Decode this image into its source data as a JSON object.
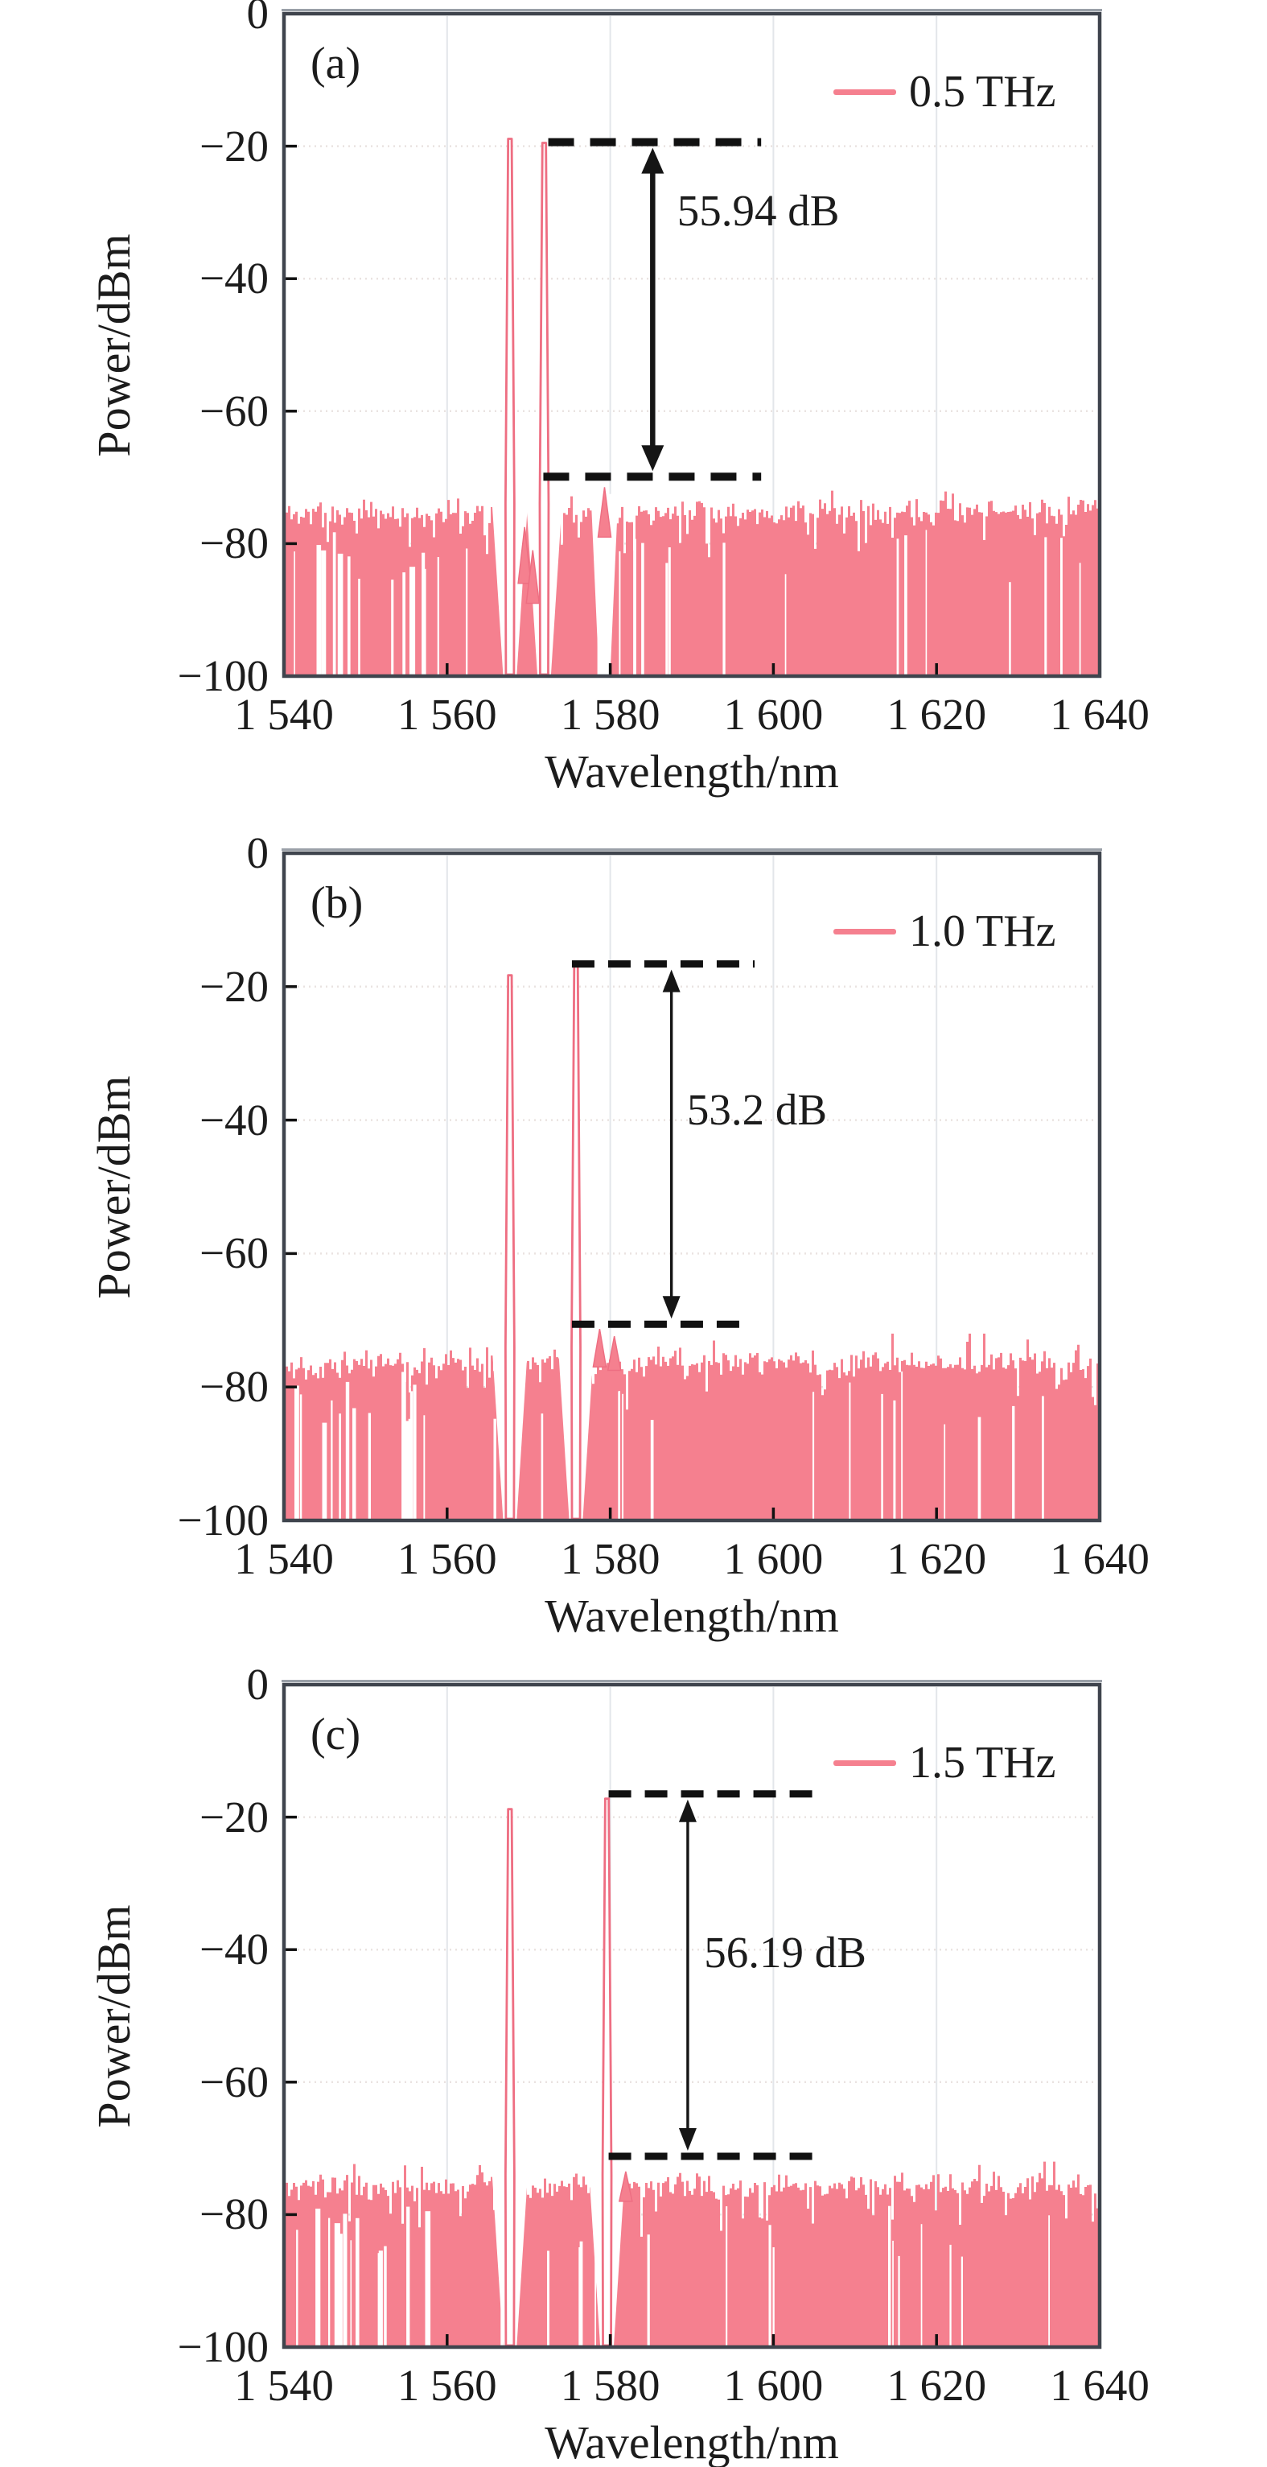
{
  "figure": {
    "background": "#ffffff",
    "trace_color": "#f5808f",
    "trace_edge_color": "#ee6e82",
    "frame_color": "#3f444d",
    "frame_highlight_color": "#9aa0a8",
    "grid_vertical_color": "#e3e6ea",
    "grid_horizontal_color": "#eae3e1",
    "dash_color": "#111111",
    "arrow_color": "#151515",
    "text_color": "#1c1c1c"
  },
  "chart_data": [
    {
      "type": "area",
      "panel_label": "(a)",
      "legend": {
        "label": "0.5 THz",
        "position": "top-right"
      },
      "xlabel": "Wavelength/nm",
      "ylabel": "Power/dBm",
      "xlim": [
        1540,
        1640
      ],
      "ylim": [
        -100,
        0
      ],
      "x_ticks": [
        1540,
        1560,
        1580,
        1600,
        1620,
        1640
      ],
      "x_tick_labels": [
        "1 540",
        "1 560",
        "1 580",
        "1 600",
        "1 620",
        "1 640"
      ],
      "y_ticks": [
        0,
        -20,
        -40,
        -60,
        -80,
        -100
      ],
      "y_tick_labels": [
        "0",
        "−20",
        "−40",
        "−60",
        "−80",
        "−100"
      ],
      "grid": true,
      "peaks": [
        {
          "name": "pump",
          "wavelength_nm": 1567.7,
          "power_dbm": -18.9
        },
        {
          "name": "signal",
          "wavelength_nm": 1571.9,
          "power_dbm": -19.5
        }
      ],
      "small_peaks": [
        {
          "wavelength_nm": 1569.5,
          "power_dbm": -77.5,
          "base_dbm": -86,
          "column": false
        },
        {
          "wavelength_nm": 1570.5,
          "power_dbm": -81.0,
          "base_dbm": -89,
          "column": false
        },
        {
          "wavelength_nm": 1579.3,
          "power_dbm": -71.5,
          "base_dbm": -79,
          "column": true
        }
      ],
      "noise_floor_dbm": -75.4,
      "noise_jitter_db": 2.4,
      "noise_seed": 11,
      "osnr_annotation": {
        "text": "55.94 dB",
        "value_db": 55.94,
        "arrow_x_nm": 1585.2,
        "arrow_style": "thick",
        "top_line_dbm": -19.4,
        "top_line_range_nm": [
          1572.4,
          1598.5
        ],
        "bottom_line_dbm": -69.9,
        "bottom_line_range_nm": [
          1571.8,
          1598.5
        ],
        "text_anchor_nm": 1588.2,
        "text_center_dbm": -29.8
      }
    },
    {
      "type": "area",
      "panel_label": "(b)",
      "legend": {
        "label": "1.0 THz",
        "position": "top-right"
      },
      "xlabel": "Wavelength/nm",
      "ylabel": "Power/dBm",
      "xlim": [
        1540,
        1640
      ],
      "ylim": [
        -100,
        0
      ],
      "x_ticks": [
        1540,
        1560,
        1580,
        1600,
        1620,
        1640
      ],
      "x_tick_labels": [
        "1 540",
        "1 560",
        "1 580",
        "1 600",
        "1 620",
        "1 640"
      ],
      "y_ticks": [
        0,
        -20,
        -40,
        -60,
        -80,
        -100
      ],
      "y_tick_labels": [
        "0",
        "−20",
        "−40",
        "−60",
        "−80",
        "−100"
      ],
      "grid": true,
      "peaks": [
        {
          "name": "pump",
          "wavelength_nm": 1567.7,
          "power_dbm": -18.3
        },
        {
          "name": "signal",
          "wavelength_nm": 1575.8,
          "power_dbm": -16.7
        }
      ],
      "small_peaks": [
        {
          "wavelength_nm": 1578.7,
          "power_dbm": -71.3,
          "base_dbm": -77,
          "column": false
        },
        {
          "wavelength_nm": 1580.5,
          "power_dbm": -72.4,
          "base_dbm": -77.5,
          "column": false
        }
      ],
      "noise_floor_dbm": -76.6,
      "noise_jitter_db": 2.4,
      "noise_seed": 22,
      "osnr_annotation": {
        "text": "53.2 dB",
        "value_db": 53.2,
        "arrow_x_nm": 1587.5,
        "arrow_style": "thin",
        "top_line_dbm": -16.6,
        "top_line_range_nm": [
          1575.3,
          1597.7
        ],
        "bottom_line_dbm": -70.6,
        "bottom_line_range_nm": [
          1575.3,
          1596.5
        ],
        "text_anchor_nm": 1589.4,
        "text_center_dbm": -38.5
      }
    },
    {
      "type": "area",
      "panel_label": "(c)",
      "legend": {
        "label": "1.5 THz",
        "position": "top-right"
      },
      "xlabel": "Wavelength/nm",
      "ylabel": "Power/dBm",
      "xlim": [
        1540,
        1640
      ],
      "ylim": [
        -100,
        0
      ],
      "x_ticks": [
        1540,
        1560,
        1580,
        1600,
        1620,
        1640
      ],
      "x_tick_labels": [
        "1 540",
        "1 560",
        "1 580",
        "1 600",
        "1 620",
        "1 640"
      ],
      "y_ticks": [
        0,
        -20,
        -40,
        -60,
        -80,
        -100
      ],
      "y_tick_labels": [
        "0",
        "−20",
        "−40",
        "−60",
        "−80",
        "−100"
      ],
      "grid": true,
      "peaks": [
        {
          "name": "pump",
          "wavelength_nm": 1567.7,
          "power_dbm": -18.8
        },
        {
          "name": "signal",
          "wavelength_nm": 1579.6,
          "power_dbm": -17.2
        }
      ],
      "small_peaks": [
        {
          "wavelength_nm": 1581.9,
          "power_dbm": -73.5,
          "base_dbm": -78,
          "column": false
        }
      ],
      "noise_floor_dbm": -75.9,
      "noise_jitter_db": 2.4,
      "noise_seed": 33,
      "osnr_annotation": {
        "text": "56.19 dB",
        "value_db": 56.19,
        "arrow_x_nm": 1589.5,
        "arrow_style": "thin",
        "top_line_dbm": -16.5,
        "top_line_range_nm": [
          1579.8,
          1604.8
        ],
        "bottom_line_dbm": -71.2,
        "bottom_line_range_nm": [
          1579.8,
          1604.8
        ],
        "text_anchor_nm": 1591.5,
        "text_center_dbm": -40.5
      }
    }
  ]
}
